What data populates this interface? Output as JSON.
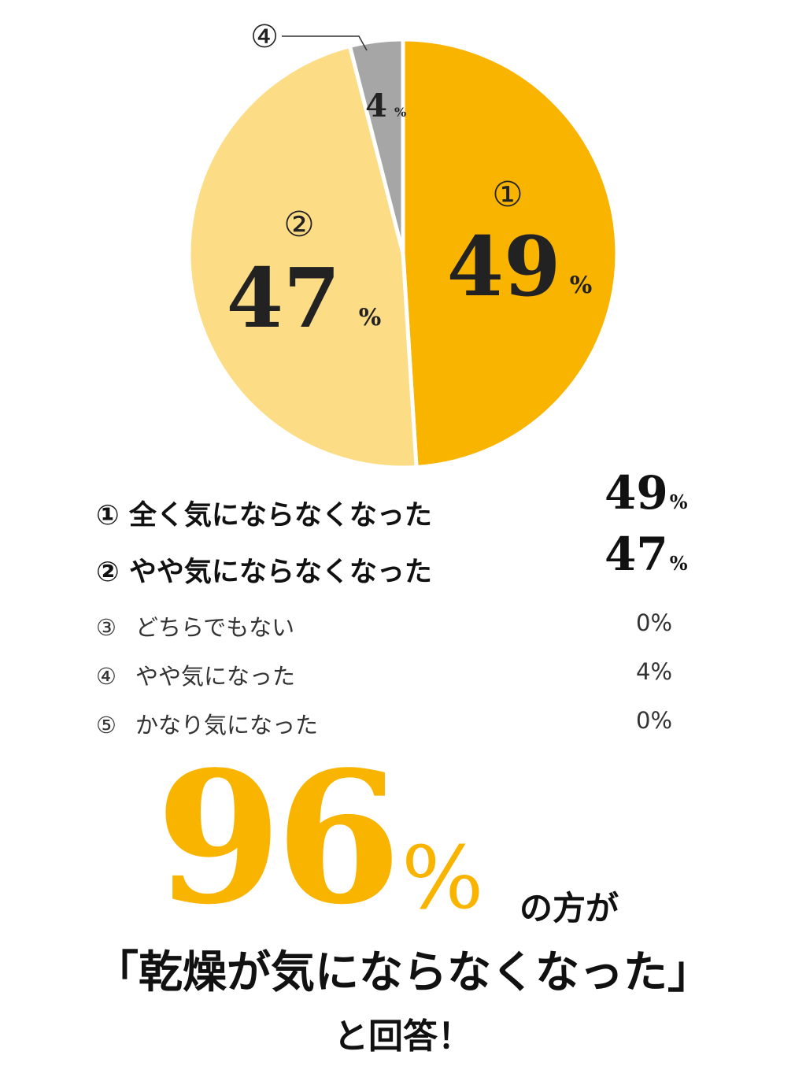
{
  "chart_data": {
    "type": "pie",
    "slices": [
      {
        "marker": "①",
        "label": "全く気にならなくなった",
        "value": 49,
        "color": "#F9B400"
      },
      {
        "marker": "②",
        "label": "やや気にならなくなった",
        "value": 47,
        "color": "#FDDC86"
      },
      {
        "marker": "③",
        "label": "どちらでもない",
        "value": 0,
        "color": "#FFFFFF"
      },
      {
        "marker": "④",
        "label": "やや気になった",
        "value": 4,
        "color": "#A6A6A6"
      },
      {
        "marker": "⑤",
        "label": "かなり気になった",
        "value": 0,
        "color": "#FFFFFF"
      }
    ],
    "unit": "%"
  },
  "legend": [
    {
      "marker": "①",
      "label": "全く気にならなくなった",
      "value": "49",
      "unit": "%"
    },
    {
      "marker": "②",
      "label": "やや気にならなくなった",
      "value": "47",
      "unit": "%"
    },
    {
      "marker": "③",
      "label": "どちらでもない",
      "value": "0%"
    },
    {
      "marker": "④",
      "label": "やや気になった",
      "value": "4%"
    },
    {
      "marker": "⑤",
      "label": "かなり気になった",
      "value": "0%"
    }
  ],
  "summary": {
    "number": "96",
    "unit": "%",
    "suffix": "の方が",
    "line2": "「乾燥が気にならなくなった」",
    "line3": "と回答！"
  },
  "colors": {
    "accent": "#F9B400",
    "light": "#FDDC86",
    "gray": "#A6A6A6"
  }
}
